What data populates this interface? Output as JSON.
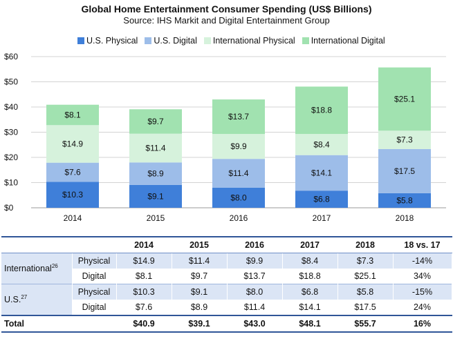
{
  "title": "Global Home Entertainment Consumer Spending (US$ Billions)",
  "subtitle": "Source: IHS Markit and Digital Entertainment Group",
  "colors": {
    "us_physical": "#3f7fd9",
    "us_digital": "#9dbde9",
    "intl_physical": "#d6f2dc",
    "intl_digital": "#a1e2b0",
    "grid": "#d3d3d3",
    "table_band": "#dbe5f5",
    "table_rule": "#2f5597"
  },
  "chart_data": {
    "type": "bar",
    "stacked": true,
    "title": "Global Home Entertainment Consumer Spending (US$ Billions)",
    "subtitle": "Source: IHS Markit and Digital Entertainment Group",
    "categories": [
      "2014",
      "2015",
      "2016",
      "2017",
      "2018"
    ],
    "series": [
      {
        "name": "U.S. Physical",
        "values": [
          10.3,
          9.1,
          8.0,
          6.8,
          5.8
        ],
        "labels": [
          "$10.3",
          "$9.1",
          "$8.0",
          "$6.8",
          "$5.8"
        ]
      },
      {
        "name": "U.S. Digital",
        "values": [
          7.6,
          8.9,
          11.4,
          14.1,
          17.5
        ],
        "labels": [
          "$7.6",
          "$8.9",
          "$11.4",
          "$14.1",
          "$17.5"
        ]
      },
      {
        "name": "International Physical",
        "values": [
          14.9,
          11.4,
          9.9,
          8.4,
          7.3
        ],
        "labels": [
          "$14.9",
          "$11.4",
          "$9.9",
          "$8.4",
          "$7.3"
        ]
      },
      {
        "name": "International Digital",
        "values": [
          8.1,
          9.7,
          13.7,
          18.8,
          25.1
        ],
        "labels": [
          "$8.1",
          "$9.7",
          "$13.7",
          "$18.8",
          "$25.1"
        ]
      }
    ],
    "yticks": [
      "$0",
      "$10",
      "$20",
      "$30",
      "$40",
      "$50",
      "$60"
    ],
    "ylim": [
      0,
      60
    ],
    "grid": true,
    "legend_position": "top"
  },
  "table": {
    "headers": [
      "",
      "",
      "2014",
      "2015",
      "2016",
      "2017",
      "2018",
      "18 vs. 17"
    ],
    "groups": [
      {
        "label": "International",
        "footnote": "26",
        "rows": [
          {
            "label": "Physical",
            "values": [
              "$14.9",
              "$11.4",
              "$9.9",
              "$8.4",
              "$7.3",
              "-14%"
            ]
          },
          {
            "label": "Digital",
            "values": [
              "$8.1",
              "$9.7",
              "$13.7",
              "$18.8",
              "$25.1",
              "34%"
            ]
          }
        ]
      },
      {
        "label": "U.S.",
        "footnote": "27",
        "rows": [
          {
            "label": "Physical",
            "values": [
              "$10.3",
              "$9.1",
              "$8.0",
              "$6.8",
              "$5.8",
              "-15%"
            ]
          },
          {
            "label": "Digital",
            "values": [
              "$7.6",
              "$8.9",
              "$11.4",
              "$14.1",
              "$17.5",
              "24%"
            ]
          }
        ]
      }
    ],
    "total": {
      "label": "Total",
      "values": [
        "$40.9",
        "$39.1",
        "$43.0",
        "$48.1",
        "$55.7",
        "16%"
      ]
    }
  }
}
